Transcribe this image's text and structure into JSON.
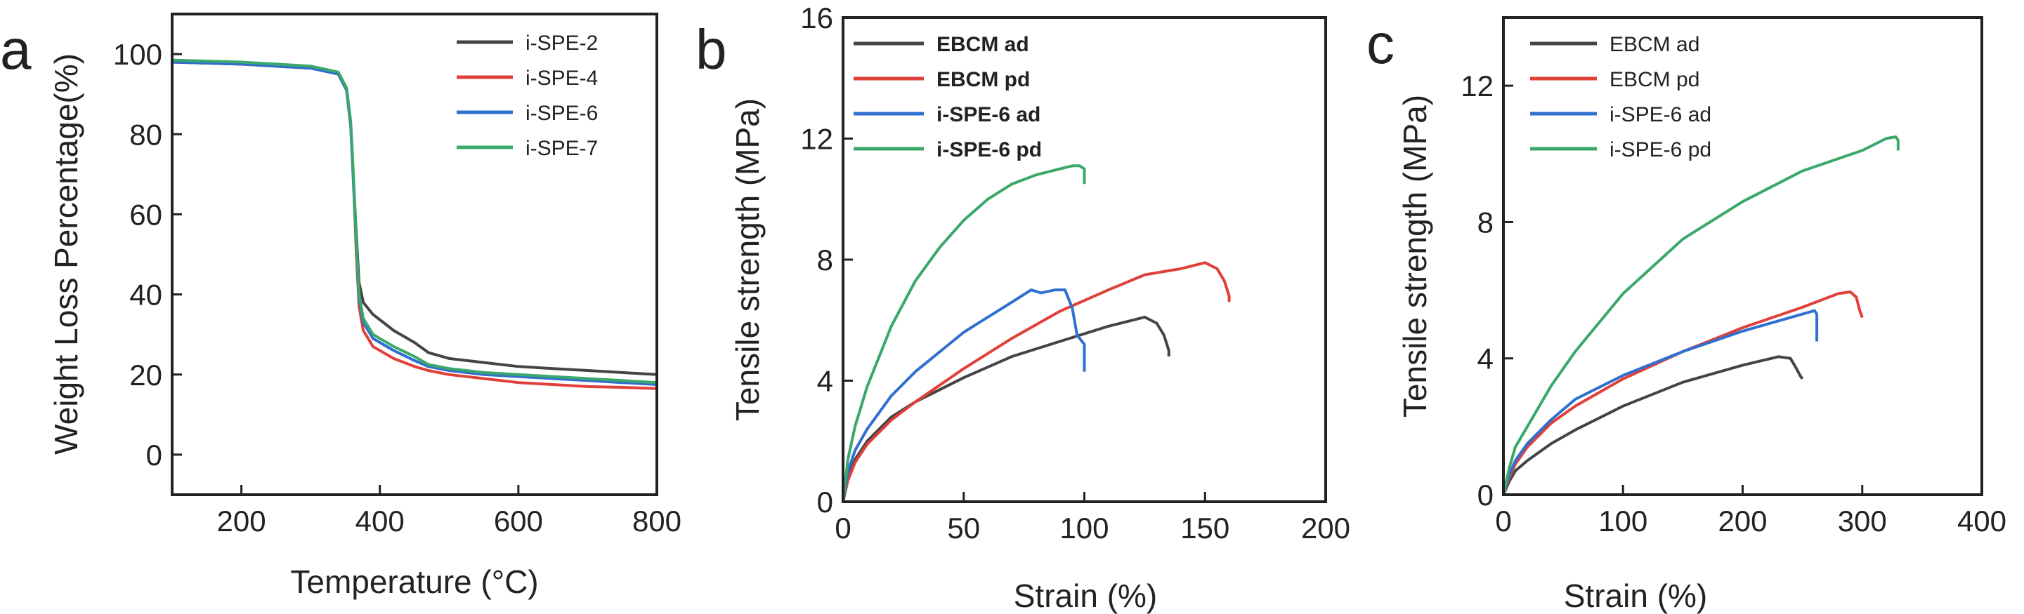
{
  "chart_data": [
    {
      "panel_label": "a",
      "type": "line",
      "xlabel": "Temperature (°C)",
      "ylabel": "Weight Loss Percentage(%)",
      "xlim": [
        100,
        800
      ],
      "ylim": [
        -10,
        110
      ],
      "xticks": [
        200,
        400,
        600,
        800
      ],
      "yticks": [
        0,
        20,
        40,
        60,
        80,
        100
      ],
      "legend_position": "top-right",
      "legend_bold": false,
      "series": [
        {
          "name": "i-SPE-2",
          "color": "#444444",
          "x": [
            100,
            200,
            300,
            340,
            352,
            358,
            362,
            366,
            370,
            376,
            390,
            420,
            450,
            470,
            500,
            550,
            600,
            650,
            700,
            750,
            800
          ],
          "y": [
            98,
            97.5,
            96.5,
            95,
            91,
            82,
            68,
            55,
            43,
            38,
            35,
            31,
            28,
            25.5,
            24,
            23,
            22,
            21.5,
            21,
            20.5,
            20
          ]
        },
        {
          "name": "i-SPE-4",
          "color": "#e0403a",
          "x": [
            100,
            200,
            300,
            340,
            352,
            358,
            362,
            366,
            370,
            376,
            390,
            420,
            450,
            470,
            500,
            550,
            600,
            650,
            700,
            750,
            800
          ],
          "y": [
            98,
            97.5,
            96.5,
            95,
            91,
            82,
            68,
            50,
            37,
            31,
            27,
            24,
            22,
            21,
            20,
            19,
            18,
            17.5,
            17,
            16.8,
            16.5
          ]
        },
        {
          "name": "i-SPE-6",
          "color": "#2f6fd0",
          "x": [
            100,
            200,
            300,
            340,
            352,
            358,
            362,
            366,
            370,
            376,
            390,
            420,
            450,
            470,
            500,
            550,
            600,
            650,
            700,
            750,
            800
          ],
          "y": [
            98,
            97.5,
            96.5,
            95,
            91,
            82,
            67,
            52,
            39,
            33,
            29,
            26,
            23.5,
            22,
            21,
            20,
            19.5,
            19,
            18.5,
            18,
            17.5
          ]
        },
        {
          "name": "i-SPE-7",
          "color": "#3aa86a",
          "x": [
            100,
            200,
            300,
            340,
            352,
            358,
            362,
            366,
            370,
            376,
            390,
            420,
            450,
            470,
            500,
            550,
            600,
            650,
            700,
            750,
            800
          ],
          "y": [
            98.5,
            98,
            97,
            95.5,
            91.5,
            83,
            69,
            53,
            40,
            34,
            30,
            27,
            24.5,
            22.5,
            21.5,
            20.5,
            20,
            19.5,
            19,
            18.5,
            18
          ]
        }
      ]
    },
    {
      "panel_label": "b",
      "type": "line",
      "xlabel": "Strain (%)",
      "ylabel": "Tensile strength   (MPa)",
      "xlim": [
        0,
        200
      ],
      "ylim": [
        0,
        16
      ],
      "xticks": [
        0,
        50,
        100,
        150,
        200
      ],
      "yticks": [
        0,
        4,
        8,
        12,
        16
      ],
      "legend_position": "top-left",
      "legend_bold": true,
      "series": [
        {
          "name": "EBCM ad",
          "color": "#444444",
          "x": [
            0,
            2,
            5,
            10,
            20,
            30,
            50,
            70,
            90,
            110,
            125,
            130,
            133,
            135,
            135
          ],
          "y": [
            0,
            0.8,
            1.4,
            2.0,
            2.8,
            3.3,
            4.1,
            4.8,
            5.3,
            5.8,
            6.1,
            5.9,
            5.5,
            5.0,
            4.8
          ]
        },
        {
          "name": "EBCM pd",
          "color": "#e0403a",
          "x": [
            0,
            2,
            5,
            10,
            20,
            30,
            50,
            70,
            90,
            110,
            125,
            140,
            150,
            155,
            158,
            160,
            160
          ],
          "y": [
            0,
            0.7,
            1.3,
            1.9,
            2.7,
            3.3,
            4.4,
            5.4,
            6.3,
            7.0,
            7.5,
            7.7,
            7.9,
            7.7,
            7.3,
            6.8,
            6.6
          ]
        },
        {
          "name": "i-SPE-6  ad",
          "color": "#2f6fd0",
          "x": [
            0,
            2,
            5,
            10,
            20,
            30,
            50,
            70,
            78,
            82,
            88,
            92,
            95,
            97,
            100,
            100
          ],
          "y": [
            0,
            1.0,
            1.7,
            2.4,
            3.5,
            4.3,
            5.6,
            6.6,
            7.0,
            6.9,
            7.0,
            7.0,
            6.4,
            5.5,
            5.2,
            4.3
          ]
        },
        {
          "name": "i-SPE-6 pd",
          "color": "#3aa86a",
          "x": [
            0,
            2,
            5,
            10,
            20,
            30,
            40,
            50,
            60,
            70,
            80,
            90,
            95,
            98,
            100,
            100
          ],
          "y": [
            0,
            1.4,
            2.5,
            3.8,
            5.8,
            7.3,
            8.4,
            9.3,
            10.0,
            10.5,
            10.8,
            11.0,
            11.1,
            11.1,
            11.0,
            10.5
          ]
        }
      ]
    },
    {
      "panel_label": "c",
      "type": "line",
      "xlabel": "Strain (%)",
      "ylabel": "Tensile strength  (MPa)",
      "xlim": [
        0,
        400
      ],
      "ylim": [
        0,
        14
      ],
      "xticks": [
        0,
        100,
        200,
        300,
        400
      ],
      "yticks": [
        0,
        4,
        8,
        12
      ],
      "legend_position": "top-left",
      "legend_bold": false,
      "series": [
        {
          "name": "EBCM ad",
          "color": "#444444",
          "x": [
            0,
            5,
            10,
            20,
            40,
            60,
            100,
            150,
            200,
            230,
            240,
            245,
            248,
            250
          ],
          "y": [
            0,
            0.4,
            0.7,
            1.0,
            1.5,
            1.9,
            2.6,
            3.3,
            3.8,
            4.05,
            4.0,
            3.7,
            3.5,
            3.4
          ]
        },
        {
          "name": "EBCM pd",
          "color": "#e0403a",
          "x": [
            0,
            5,
            10,
            20,
            40,
            60,
            100,
            150,
            200,
            250,
            280,
            290,
            295,
            298,
            300
          ],
          "y": [
            0,
            0.5,
            0.9,
            1.4,
            2.1,
            2.6,
            3.4,
            4.2,
            4.9,
            5.5,
            5.9,
            5.95,
            5.8,
            5.4,
            5.2
          ]
        },
        {
          "name": "i-SPE-6 ad",
          "color": "#2f6fd0",
          "x": [
            0,
            5,
            10,
            20,
            40,
            60,
            100,
            150,
            200,
            240,
            260,
            262,
            262
          ],
          "y": [
            0,
            0.6,
            1.0,
            1.5,
            2.2,
            2.8,
            3.5,
            4.2,
            4.8,
            5.2,
            5.4,
            5.3,
            4.5
          ]
        },
        {
          "name": "i-SPE-6 pd",
          "color": "#3aa86a",
          "x": [
            0,
            5,
            10,
            20,
            40,
            60,
            100,
            150,
            200,
            250,
            300,
            320,
            328,
            330,
            330
          ],
          "y": [
            0,
            0.8,
            1.4,
            2.0,
            3.2,
            4.2,
            5.9,
            7.5,
            8.6,
            9.5,
            10.1,
            10.45,
            10.5,
            10.4,
            10.1
          ]
        }
      ]
    }
  ]
}
